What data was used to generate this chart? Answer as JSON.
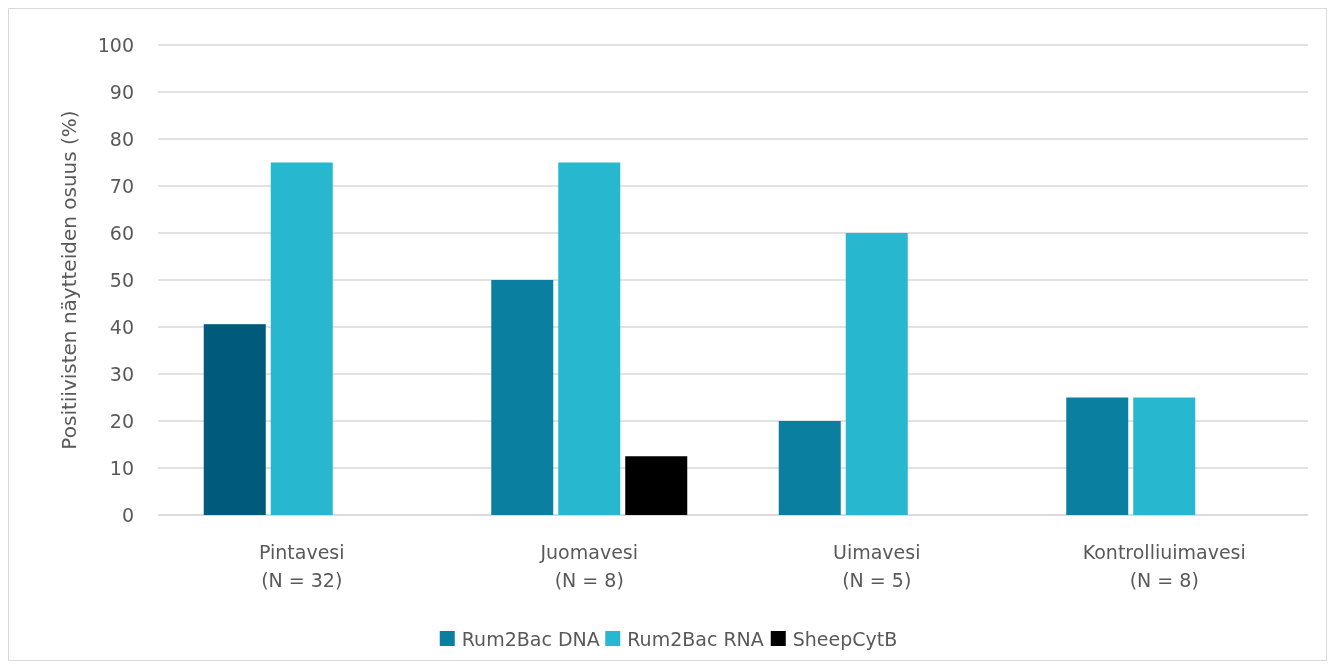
{
  "chart_data": {
    "type": "bar",
    "ylabel": "Positiivisten näytteiden osuus (%)",
    "categories": [
      "Pintavesi\n(N = 32)",
      "Juomavesi\n(N = 8)",
      "Uimavesi\n(N = 5)",
      "Kontrolliuimavesi\n(N = 8)"
    ],
    "series": [
      {
        "name": "Rum2Bac DNA",
        "color": "#0a7fa0",
        "colors": [
          "#005a7a",
          "#0a7fa0",
          "#0a7fa0",
          "#0a7fa0"
        ],
        "values": [
          40.6,
          50,
          20,
          25
        ]
      },
      {
        "name": "Rum2Bac RNA",
        "color": "#27b7cf",
        "values": [
          75,
          75,
          60,
          25
        ]
      },
      {
        "name": "SheepCytB",
        "color": "#000000",
        "values": [
          null,
          12.5,
          null,
          null
        ]
      }
    ],
    "ylim": [
      0,
      100
    ],
    "yticks": [
      0,
      10,
      20,
      30,
      40,
      50,
      60,
      70,
      80,
      90,
      100
    ],
    "grid": "y",
    "legend": "bottom"
  }
}
